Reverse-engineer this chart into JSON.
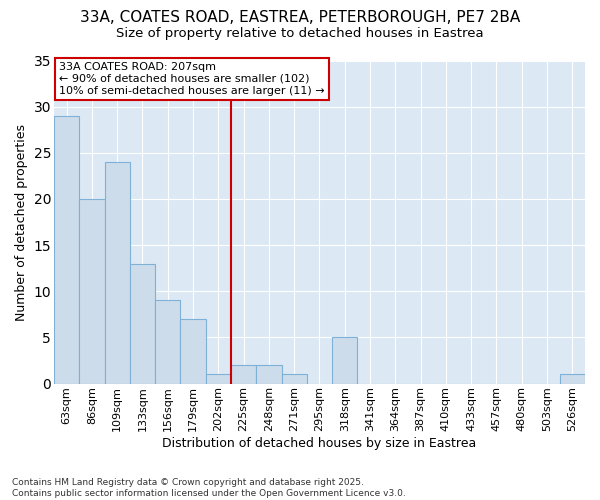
{
  "title_line1": "33A, COATES ROAD, EASTREA, PETERBOROUGH, PE7 2BA",
  "title_line2": "Size of property relative to detached houses in Eastrea",
  "xlabel": "Distribution of detached houses by size in Eastrea",
  "ylabel": "Number of detached properties",
  "categories": [
    "63sqm",
    "86sqm",
    "109sqm",
    "133sqm",
    "156sqm",
    "179sqm",
    "202sqm",
    "225sqm",
    "248sqm",
    "271sqm",
    "295sqm",
    "318sqm",
    "341sqm",
    "364sqm",
    "387sqm",
    "410sqm",
    "433sqm",
    "457sqm",
    "480sqm",
    "503sqm",
    "526sqm"
  ],
  "values": [
    29,
    20,
    24,
    13,
    9,
    7,
    1,
    2,
    2,
    1,
    0,
    5,
    0,
    0,
    0,
    0,
    0,
    0,
    0,
    0,
    1
  ],
  "bar_color": "#cddceb",
  "bar_edge_color": "#7fb0d5",
  "highlight_line_color": "#cc0000",
  "highlight_bar_index": 6,
  "annotation_line1": "33A COATES ROAD: 207sqm",
  "annotation_line2": "← 90% of detached houses are smaller (102)",
  "annotation_line3": "10% of semi-detached houses are larger (11) →",
  "annotation_box_edge": "#cc0000",
  "annotation_box_fill": "#ffffff",
  "ylim": [
    0,
    35
  ],
  "yticks": [
    0,
    5,
    10,
    15,
    20,
    25,
    30,
    35
  ],
  "fig_background": "#ffffff",
  "axes_background": "#dce9f5",
  "grid_color": "#ffffff",
  "footer_line1": "Contains HM Land Registry data © Crown copyright and database right 2025.",
  "footer_line2": "Contains public sector information licensed under the Open Government Licence v3.0.",
  "title_fontsize": 11,
  "subtitle_fontsize": 9.5,
  "axis_label_fontsize": 9,
  "tick_fontsize": 8,
  "annotation_fontsize": 8,
  "footer_fontsize": 6.5
}
